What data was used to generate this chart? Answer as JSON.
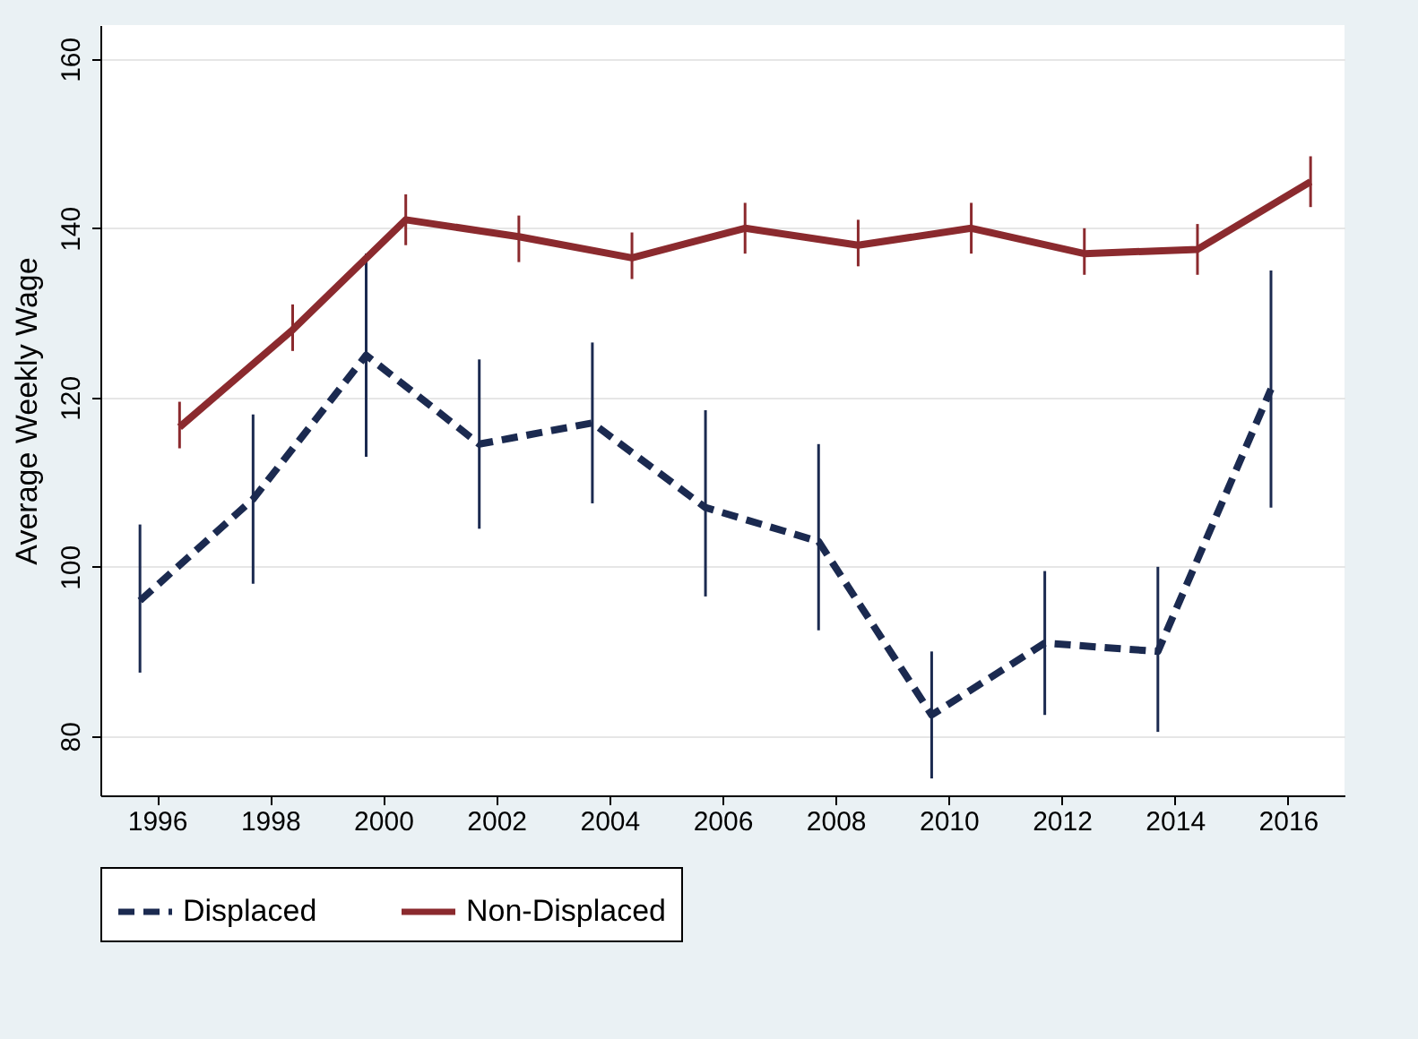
{
  "chart_data": {
    "type": "line",
    "ylabel": "Average Weekly Wage",
    "xlim": [
      1995,
      2017
    ],
    "xticks": [
      1996,
      1998,
      2000,
      2002,
      2004,
      2006,
      2008,
      2010,
      2012,
      2014,
      2016
    ],
    "ylim": [
      73,
      164
    ],
    "yticks": [
      80,
      100,
      120,
      140,
      160
    ],
    "grid": "y",
    "legend": "bottom",
    "marker": "none",
    "series": [
      {
        "name": "Displaced",
        "color": "#1b2a50",
        "line_style": "dashed",
        "x": [
          1995.7,
          1997.7,
          1999.7,
          2001.7,
          2003.7,
          2005.7,
          2007.7,
          2009.7,
          2011.7,
          2013.7,
          2015.7
        ],
        "values": [
          96,
          108,
          125,
          114.5,
          117,
          107,
          103,
          82.5,
          91,
          90,
          121
        ],
        "errors": [
          [
            87.5,
            105
          ],
          [
            98,
            118
          ],
          [
            113,
            137
          ],
          [
            104.5,
            124.5
          ],
          [
            107.5,
            126.5
          ],
          [
            96.5,
            118.5
          ],
          [
            92.5,
            114.5
          ],
          [
            75,
            90
          ],
          [
            82.5,
            99.5
          ],
          [
            80.5,
            100
          ],
          [
            107,
            135
          ]
        ]
      },
      {
        "name": "Non-Displaced",
        "color": "#8b2a2e",
        "line_style": "solid",
        "x": [
          1996.4,
          1998.4,
          2000.4,
          2002.4,
          2004.4,
          2006.4,
          2008.4,
          2010.4,
          2012.4,
          2014.4,
          2016.4
        ],
        "values": [
          116.5,
          128,
          141,
          139,
          136.5,
          140,
          138,
          140,
          137,
          137.5,
          145.5
        ],
        "errors": [
          [
            114,
            119.5
          ],
          [
            125.5,
            131
          ],
          [
            138,
            144
          ],
          [
            136,
            141.5
          ],
          [
            134,
            139.5
          ],
          [
            137,
            143
          ],
          [
            135.5,
            141
          ],
          [
            137,
            143
          ],
          [
            134.5,
            140
          ],
          [
            134.5,
            140.5
          ],
          [
            142.5,
            148.5
          ]
        ]
      }
    ]
  }
}
